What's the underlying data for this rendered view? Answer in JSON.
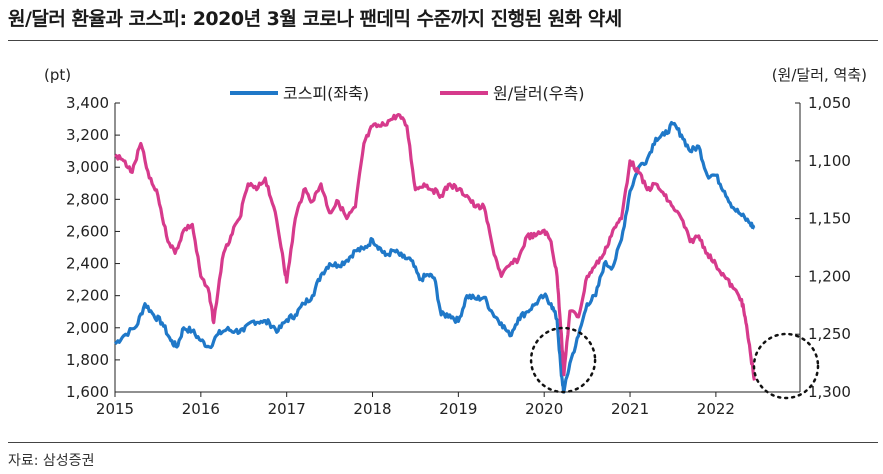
{
  "header": {
    "title": "원/달러 환율과 코스피: 2020년 3월 코로나 팬데믹 수준까지 진행된 원화 약세"
  },
  "footer": {
    "source": "자료: 삼성증권"
  },
  "colors": {
    "kospi": "#1f78c8",
    "krw": "#d63a8c",
    "axis": "#222222"
  },
  "chart_data": {
    "type": "line",
    "title": "원/달러 환율과 코스피: 2020년 3월 코로나 팬데믹 수준까지 진행된 원화 약세",
    "left_unit": "(pt)",
    "right_unit": "(원/달러, 역축)",
    "x_range": [
      2015.0,
      2022.45
    ],
    "x_ticks": [
      "2015",
      "2016",
      "2017",
      "2018",
      "2019",
      "2020",
      "2021",
      "2022"
    ],
    "left_axis": {
      "range": [
        1600,
        3400
      ],
      "ticks": [
        "1,600",
        "1,800",
        "2,000",
        "2,200",
        "2,400",
        "2,600",
        "2,800",
        "3,000",
        "3,200",
        "3,400"
      ]
    },
    "right_axis": {
      "range": [
        1050,
        1300
      ],
      "inverted": true,
      "ticks": [
        "1,050",
        "1,100",
        "1,150",
        "1,200",
        "1,250",
        "1,300"
      ]
    },
    "legend_position": "top-center",
    "series": [
      {
        "name": "코스피(좌축)",
        "axis": "left",
        "x": [
          2015.0,
          2015.1,
          2015.25,
          2015.35,
          2015.45,
          2015.55,
          2015.65,
          2015.72,
          2015.8,
          2015.9,
          2016.0,
          2016.1,
          2016.2,
          2016.3,
          2016.4,
          2016.5,
          2016.6,
          2016.7,
          2016.8,
          2016.9,
          2017.0,
          2017.1,
          2017.2,
          2017.3,
          2017.4,
          2017.5,
          2017.6,
          2017.7,
          2017.8,
          2017.9,
          2018.0,
          2018.08,
          2018.15,
          2018.25,
          2018.35,
          2018.45,
          2018.55,
          2018.65,
          2018.72,
          2018.8,
          2018.9,
          2019.0,
          2019.1,
          2019.2,
          2019.3,
          2019.4,
          2019.5,
          2019.6,
          2019.7,
          2019.8,
          2019.9,
          2020.0,
          2020.08,
          2020.15,
          2020.2,
          2020.23,
          2020.3,
          2020.4,
          2020.5,
          2020.6,
          2020.7,
          2020.8,
          2020.9,
          2021.0,
          2021.1,
          2021.2,
          2021.3,
          2021.4,
          2021.5,
          2021.6,
          2021.7,
          2021.8,
          2021.9,
          2022.0,
          2022.1,
          2022.2,
          2022.3,
          2022.4,
          2022.45
        ],
        "y": [
          1900,
          1950,
          2010,
          2150,
          2080,
          2030,
          1920,
          1880,
          2000,
          1980,
          1920,
          1880,
          1960,
          1990,
          1980,
          1980,
          2040,
          2040,
          2030,
          1980,
          2050,
          2080,
          2150,
          2200,
          2330,
          2400,
          2390,
          2420,
          2480,
          2490,
          2550,
          2500,
          2450,
          2480,
          2440,
          2420,
          2300,
          2330,
          2310,
          2080,
          2080,
          2040,
          2200,
          2180,
          2190,
          2090,
          2030,
          1950,
          2060,
          2100,
          2150,
          2200,
          2150,
          2050,
          1700,
          1600,
          1780,
          1950,
          2150,
          2200,
          2400,
          2380,
          2550,
          2850,
          3000,
          3050,
          3180,
          3200,
          3270,
          3200,
          3100,
          3130,
          2950,
          2950,
          2850,
          2750,
          2700,
          2650,
          2620
        ]
      },
      {
        "name": "원/달러(우측)",
        "axis": "right",
        "x": [
          2015.0,
          2015.1,
          2015.2,
          2015.3,
          2015.4,
          2015.5,
          2015.6,
          2015.7,
          2015.8,
          2015.9,
          2016.0,
          2016.1,
          2016.15,
          2016.25,
          2016.35,
          2016.45,
          2016.55,
          2016.65,
          2016.75,
          2016.85,
          2016.95,
          2017.0,
          2017.1,
          2017.2,
          2017.3,
          2017.4,
          2017.5,
          2017.6,
          2017.7,
          2017.8,
          2017.9,
          2018.0,
          2018.1,
          2018.2,
          2018.3,
          2018.4,
          2018.5,
          2018.6,
          2018.7,
          2018.8,
          2018.9,
          2019.0,
          2019.1,
          2019.2,
          2019.3,
          2019.4,
          2019.5,
          2019.6,
          2019.7,
          2019.8,
          2019.9,
          2020.0,
          2020.08,
          2020.15,
          2020.2,
          2020.23,
          2020.3,
          2020.4,
          2020.5,
          2020.6,
          2020.7,
          2020.8,
          2020.9,
          2021.0,
          2021.1,
          2021.2,
          2021.3,
          2021.4,
          2021.5,
          2021.6,
          2021.7,
          2021.8,
          2021.9,
          2022.0,
          2022.1,
          2022.2,
          2022.3,
          2022.35,
          2022.4,
          2022.45
        ],
        "y": [
          1095,
          1100,
          1110,
          1085,
          1115,
          1130,
          1165,
          1180,
          1160,
          1155,
          1200,
          1215,
          1240,
          1185,
          1165,
          1150,
          1120,
          1125,
          1115,
          1140,
          1180,
          1205,
          1150,
          1125,
          1135,
          1120,
          1145,
          1135,
          1150,
          1140,
          1085,
          1070,
          1070,
          1065,
          1060,
          1070,
          1125,
          1120,
          1125,
          1130,
          1120,
          1125,
          1130,
          1140,
          1140,
          1175,
          1200,
          1190,
          1185,
          1165,
          1165,
          1160,
          1170,
          1200,
          1250,
          1285,
          1230,
          1235,
          1200,
          1190,
          1180,
          1160,
          1150,
          1100,
          1110,
          1125,
          1120,
          1130,
          1140,
          1150,
          1170,
          1165,
          1180,
          1190,
          1200,
          1210,
          1220,
          1240,
          1265,
          1290
        ]
      }
    ],
    "annotations": [
      "circle around 2020-03 low",
      "circle around 2022 end of series"
    ]
  }
}
